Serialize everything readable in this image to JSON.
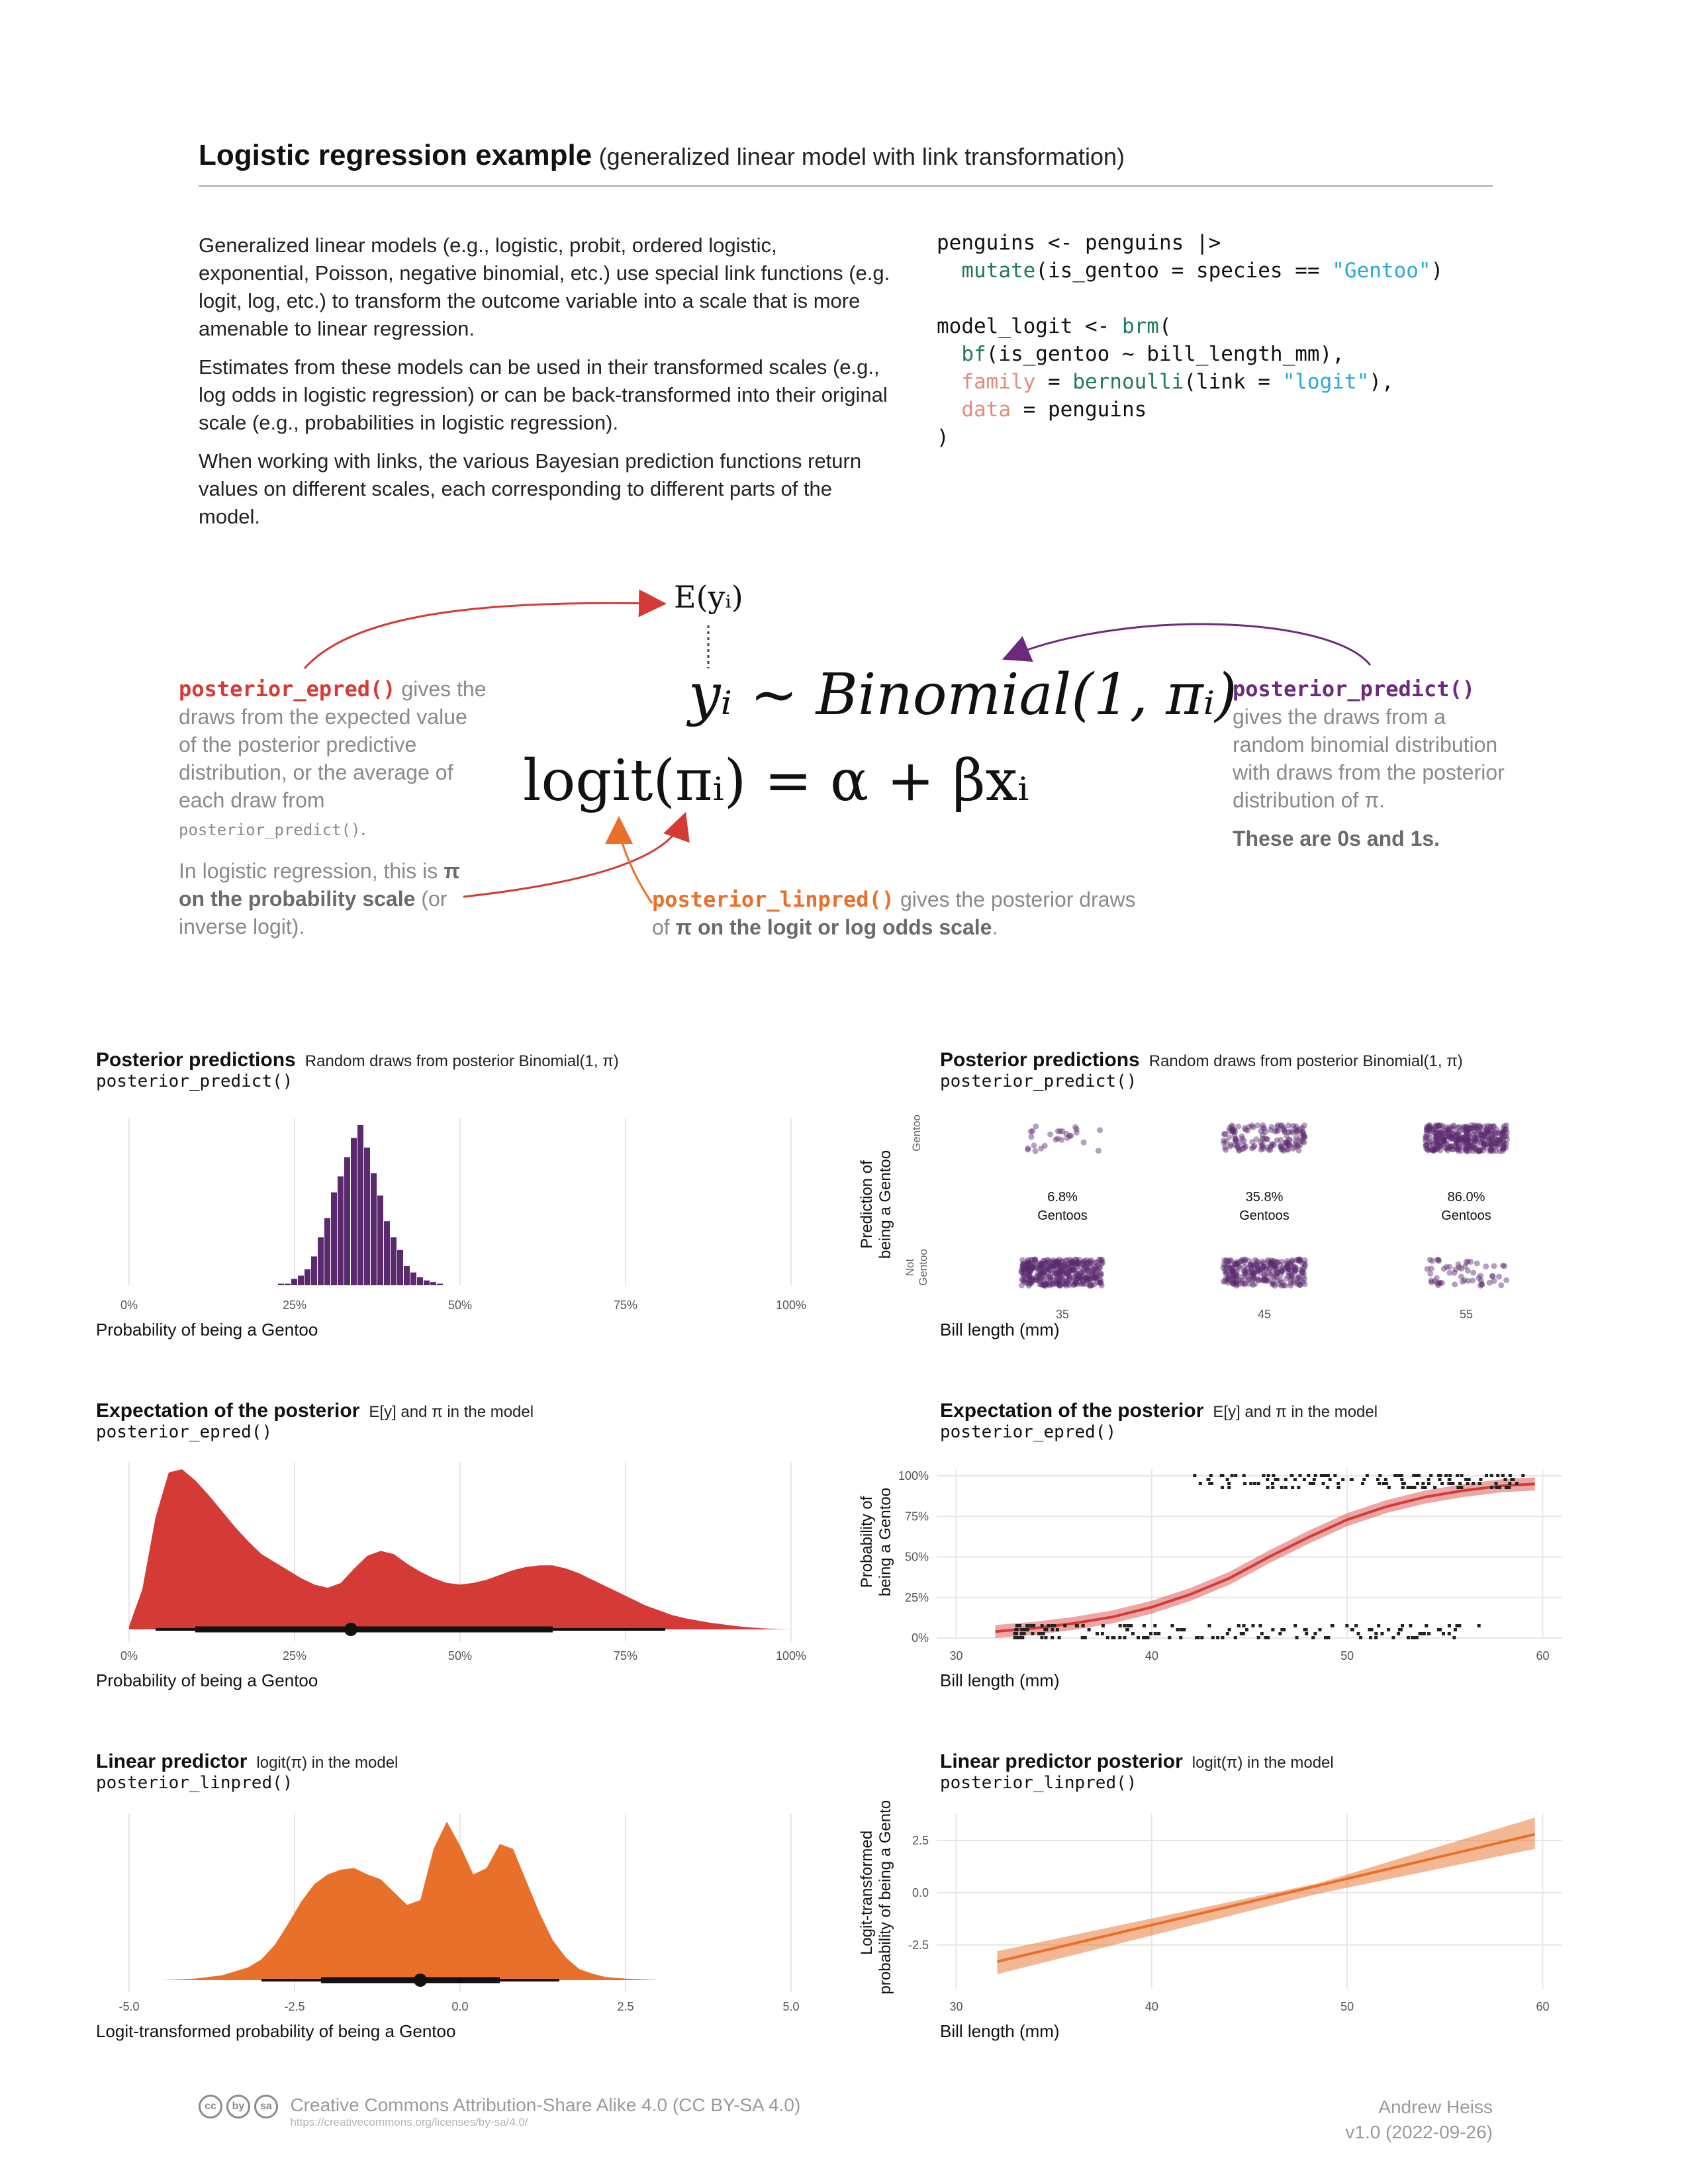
{
  "header": {
    "title": "Logistic regression example",
    "subtitle": "(generalized linear model with link transformation)"
  },
  "intro": {
    "p1": "Generalized linear models (e.g., logistic, probit, ordered logistic, exponential, Poisson, negative binomial, etc.) use special link functions (e.g. logit, log, etc.) to transform the outcome variable into a scale that is more amenable to linear regression.",
    "p2": "Estimates from these models can be used in their transformed scales (e.g., log odds in logistic regression) or can be back-transformed into their original scale (e.g., probabilities in logistic regression).",
    "p3": "When working with links, the various Bayesian prediction functions return values on different scales, each corresponding to different parts of the model."
  },
  "code": {
    "l1a": "penguins <- penguins |>",
    "l2a": "  ",
    "l2fn": "mutate",
    "l2b": "(is_gentoo = species == ",
    "l2s": "\"Gentoo\"",
    "l2c": ")",
    "l4a": "model_logit <- ",
    "l4fn": "brm",
    "l4b": "(",
    "l5a": "  ",
    "l5fn": "bf",
    "l5b": "(is_gentoo ~ bill_length_mm),",
    "l6a": "  ",
    "l6arg": "family",
    "l6b": " = ",
    "l6fn": "bernoulli",
    "l6c": "(link = ",
    "l6s": "\"logit\"",
    "l6d": "),",
    "l7a": "  ",
    "l7arg": "data",
    "l7b": " = penguins",
    "l8": ")"
  },
  "equations": {
    "expected": "E(yᵢ)",
    "binomial": "yᵢ ~ Binomial(1, πᵢ)",
    "logit": "logit(πᵢ) = α + βxᵢ"
  },
  "annotations": {
    "epred_fn": "posterior_epred()",
    "epred_text": " gives the draws from the expected value of the posterior predictive distribution, or the average of each draw from ",
    "epred_code": "posterior_predict()",
    "epred_end": ".",
    "epred2_a": "In logistic regression, this is ",
    "epred2_b": "π on the probability scale",
    "epred2_c": " (or inverse logit).",
    "predict_fn": "posterior_predict()",
    "predict_text": "gives the draws from a random binomial distribution with draws from the posterior distribution of π.",
    "predict_bold": "These are 0s and 1s.",
    "linpred_fn": "posterior_linpred()",
    "linpred_text": " gives the posterior draws of ",
    "linpred_bold": "π on the logit or log odds scale",
    "linpred_end": "."
  },
  "panels": {
    "p1": {
      "title": "Posterior predictions",
      "subtitle": "Random draws from posterior Binomial(1, π)",
      "code": "posterior_predict()",
      "xlabel": "Probability of being a Gentoo"
    },
    "p2": {
      "title": "Posterior predictions",
      "subtitle": "Random draws from posterior Binomial(1, π)",
      "code": "posterior_predict()",
      "xlabel": "Bill length (mm)",
      "ylabel1": "Prediction of",
      "ylabel2": "being a Gentoo",
      "ytick_top": "Gentoo",
      "ytick_bot1": "Not",
      "ytick_bot2": "Gentoo"
    },
    "p3": {
      "title": "Expectation of the posterior",
      "subtitle": "E[y] and π in the model",
      "code": "posterior_epred()",
      "xlabel": "Probability of being a Gentoo"
    },
    "p4": {
      "title": "Expectation of the posterior",
      "subtitle": "E[y] and π in the model",
      "code": "posterior_epred()",
      "xlabel": "Bill length (mm)",
      "ylabel1": "Probability of",
      "ylabel2": "being a Gentoo"
    },
    "p5": {
      "title": "Linear predictor",
      "subtitle": "logit(π) in the model",
      "code": "posterior_linpred()",
      "xlabel": "Logit-transformed probability of being a Gentoo"
    },
    "p6": {
      "title": "Linear predictor posterior",
      "subtitle": "logit(π) in the model",
      "code": "posterior_linpred()",
      "xlabel": "Bill length (mm)",
      "ylabel1": "Logit-transformed",
      "ylabel2": "probability of being a Gentoo"
    }
  },
  "chart_data": [
    {
      "type": "bar",
      "x": [
        0.23,
        0.24,
        0.25,
        0.26,
        0.27,
        0.28,
        0.29,
        0.3,
        0.31,
        0.32,
        0.33,
        0.34,
        0.35,
        0.36,
        0.37,
        0.38,
        0.39,
        0.4,
        0.41,
        0.42,
        0.43,
        0.44,
        0.45,
        0.46,
        0.47
      ],
      "values": [
        1,
        1,
        4,
        6,
        10,
        18,
        30,
        42,
        58,
        68,
        80,
        92,
        100,
        86,
        70,
        56,
        40,
        30,
        22,
        12,
        8,
        5,
        3,
        2,
        1
      ],
      "xticks": [
        "0%",
        "25%",
        "50%",
        "75%",
        "100%"
      ],
      "xlim": [
        0,
        1
      ],
      "color": "#5b2a6e"
    },
    {
      "type": "scatter",
      "xticks": [
        "35",
        "45",
        "55"
      ],
      "groups": [
        {
          "label": "6.8%",
          "sub": "Gentoos",
          "gentoo_density": 0.068
        },
        {
          "label": "35.8%",
          "sub": "Gentoos",
          "gentoo_density": 0.358
        },
        {
          "label": "86.0%",
          "sub": "Gentoos",
          "gentoo_density": 0.86
        }
      ],
      "color": "#5b2a6e"
    },
    {
      "type": "area",
      "x": [
        0.0,
        0.02,
        0.04,
        0.06,
        0.08,
        0.1,
        0.12,
        0.14,
        0.16,
        0.18,
        0.2,
        0.22,
        0.24,
        0.26,
        0.28,
        0.3,
        0.32,
        0.34,
        0.36,
        0.38,
        0.4,
        0.42,
        0.44,
        0.46,
        0.48,
        0.5,
        0.52,
        0.54,
        0.56,
        0.58,
        0.6,
        0.62,
        0.64,
        0.66,
        0.68,
        0.7,
        0.72,
        0.74,
        0.76,
        0.78,
        0.8,
        0.82,
        0.84,
        0.86,
        0.88,
        0.9,
        0.92,
        0.94,
        0.96,
        0.98,
        1.0
      ],
      "y": [
        0.02,
        0.25,
        0.7,
        0.98,
        1.0,
        0.93,
        0.84,
        0.74,
        0.64,
        0.55,
        0.47,
        0.42,
        0.37,
        0.32,
        0.28,
        0.26,
        0.29,
        0.38,
        0.46,
        0.49,
        0.47,
        0.41,
        0.36,
        0.32,
        0.29,
        0.28,
        0.29,
        0.31,
        0.34,
        0.37,
        0.39,
        0.4,
        0.4,
        0.38,
        0.35,
        0.31,
        0.27,
        0.23,
        0.19,
        0.15,
        0.12,
        0.09,
        0.07,
        0.055,
        0.04,
        0.03,
        0.02,
        0.012,
        0.006,
        0.002,
        0.0
      ],
      "point": 0.335,
      "interval_66": [
        0.1,
        0.64
      ],
      "interval_95": [
        0.04,
        0.81
      ],
      "xticks": [
        "0%",
        "25%",
        "50%",
        "75%",
        "100%"
      ],
      "xlim": [
        0,
        1
      ],
      "color": "#d43a36"
    },
    {
      "type": "line",
      "x": [
        32,
        34,
        36,
        38,
        40,
        42,
        44,
        46,
        48,
        50,
        52,
        54,
        56,
        58,
        59.6
      ],
      "y": [
        0.04,
        0.06,
        0.09,
        0.13,
        0.19,
        0.27,
        0.37,
        0.5,
        0.62,
        0.73,
        0.81,
        0.87,
        0.91,
        0.94,
        0.95
      ],
      "band_width": 0.04,
      "xticks": [
        "30",
        "40",
        "50",
        "60"
      ],
      "yticks": [
        "0%",
        "25%",
        "50%",
        "75%",
        "100%"
      ],
      "xlim": [
        29,
        61
      ],
      "ylim": [
        0,
        1
      ],
      "color": "#d43a36"
    },
    {
      "type": "area",
      "x": [
        -5.0,
        -4.5,
        -4.0,
        -3.6,
        -3.2,
        -3.0,
        -2.8,
        -2.6,
        -2.4,
        -2.2,
        -2.0,
        -1.8,
        -1.6,
        -1.4,
        -1.2,
        -1.0,
        -0.8,
        -0.6,
        -0.4,
        -0.2,
        0.0,
        0.2,
        0.4,
        0.6,
        0.8,
        1.0,
        1.2,
        1.4,
        1.6,
        1.8,
        2.0,
        2.2,
        2.5,
        3.0,
        3.5,
        4.0,
        4.5,
        5.0
      ],
      "y": [
        0.0,
        0.0,
        0.01,
        0.03,
        0.08,
        0.13,
        0.22,
        0.35,
        0.49,
        0.6,
        0.66,
        0.69,
        0.7,
        0.66,
        0.63,
        0.55,
        0.47,
        0.5,
        0.82,
        0.99,
        0.84,
        0.66,
        0.7,
        0.85,
        0.82,
        0.62,
        0.42,
        0.25,
        0.14,
        0.07,
        0.04,
        0.02,
        0.01,
        0.0,
        0.0,
        0.0,
        0.0,
        0.0
      ],
      "point": -0.6,
      "interval_66": [
        -2.1,
        0.6
      ],
      "interval_95": [
        -3.0,
        1.5
      ],
      "xticks": [
        "-5.0",
        "-2.5",
        "0.0",
        "2.5",
        "5.0"
      ],
      "xlim": [
        -5,
        5
      ],
      "color": "#e8702a"
    },
    {
      "type": "line",
      "x": [
        32.1,
        59.6
      ],
      "y": [
        -3.3,
        2.8
      ],
      "band_lo": [
        -3.9,
        2.1
      ],
      "band_hi": [
        -2.8,
        3.6
      ],
      "xticks": [
        "30",
        "40",
        "50",
        "60"
      ],
      "yticks": [
        "2.5",
        "0.0",
        "-2.5"
      ],
      "xlim": [
        29,
        61
      ],
      "ylim": [
        -4.6,
        3.8
      ],
      "color": "#e8702a"
    }
  ],
  "footer": {
    "license": "Creative Commons Attribution-Share Alike 4.0 (CC BY-SA 4.0)",
    "url": "https://creativecommons.org/licenses/by-sa/4.0/",
    "author": "Andrew Heiss",
    "version": "v1.0 (2022-09-26)",
    "cc_icons": [
      "cc",
      "by",
      "sa"
    ]
  }
}
